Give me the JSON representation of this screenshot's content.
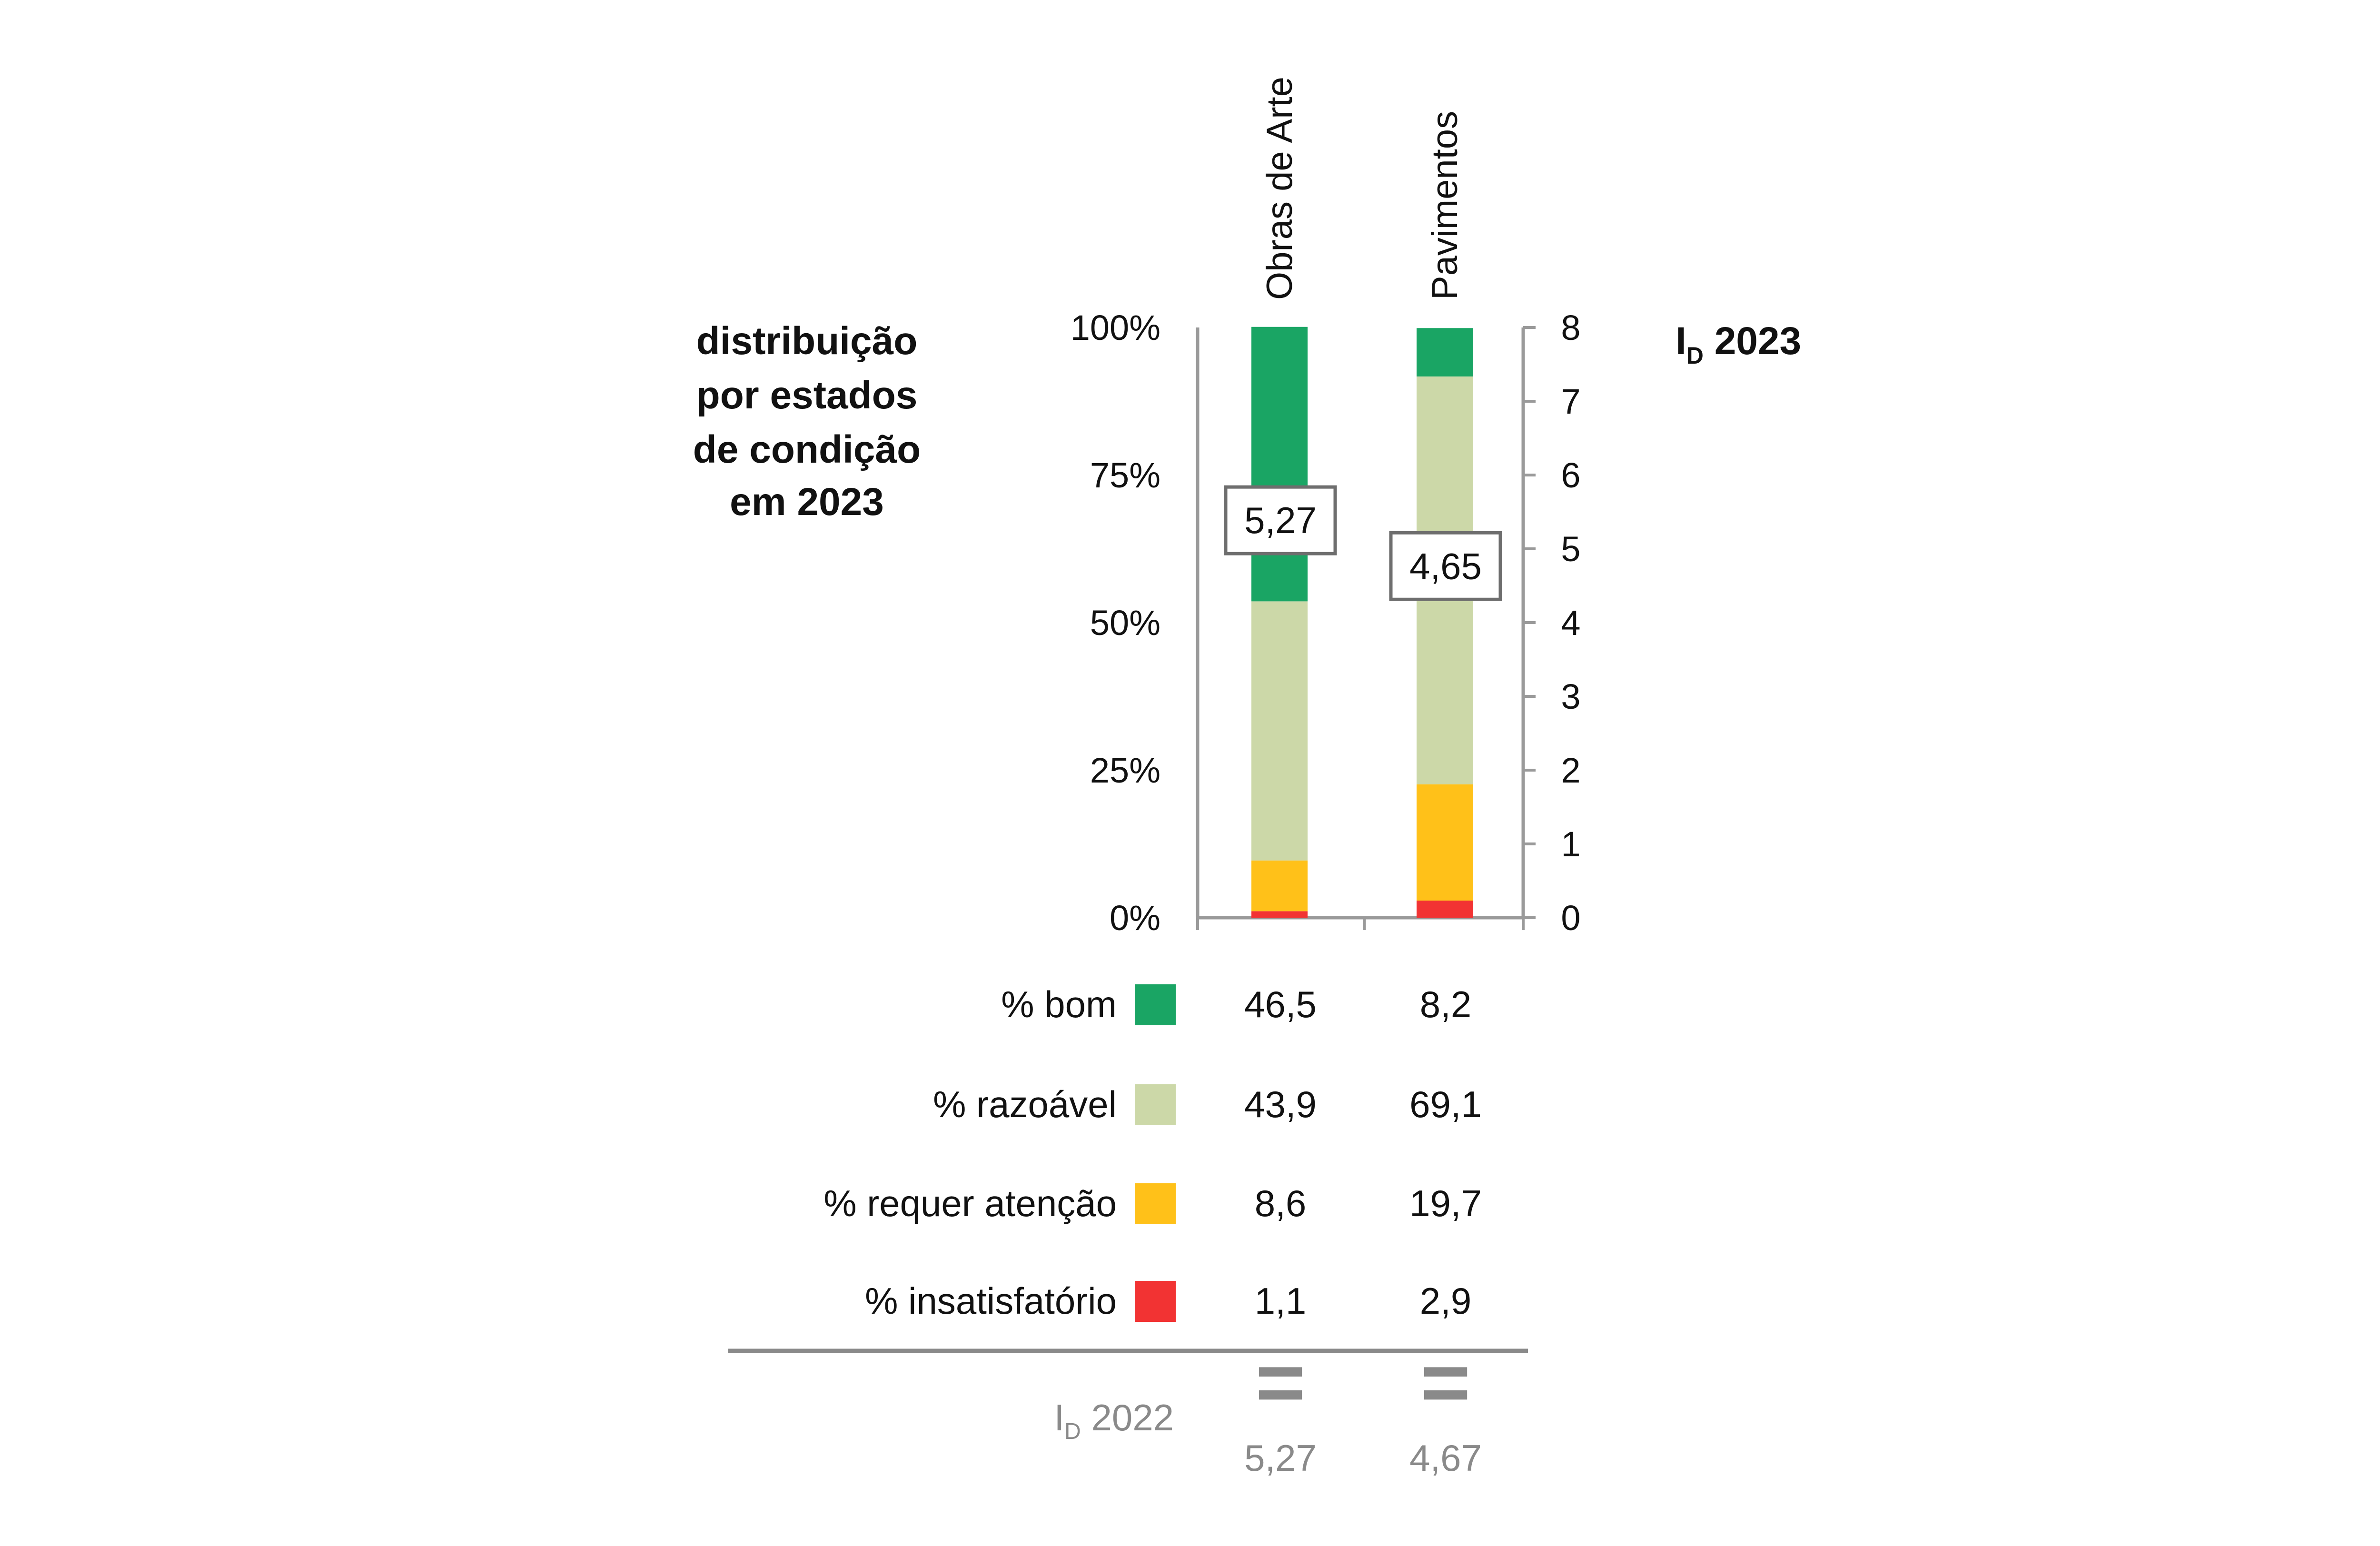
{
  "left_title": [
    "distribuição",
    "por estados",
    "de condição",
    "em 2023"
  ],
  "right_title": {
    "main": "I",
    "sub": "D",
    "rest": " 2023"
  },
  "colors": {
    "bom": "#1aa564",
    "razoavel": "#ccd8a8",
    "requer_atencao": "#ffc119",
    "insatisfatorio": "#f23333",
    "axis": "#9a9a9a",
    "text": "#111111",
    "muted": "#8a8a8a"
  },
  "chart_data": {
    "type": "bar",
    "stacked": true,
    "categories": [
      "Obras de Arte",
      "Pavimentos"
    ],
    "series": [
      {
        "name": "% insatisfatório",
        "key": "insatisfatorio",
        "values": [
          1.1,
          2.9
        ],
        "labels": [
          "1,1",
          "2,9"
        ]
      },
      {
        "name": "% requer atenção",
        "key": "requer_atencao",
        "values": [
          8.6,
          19.7
        ],
        "labels": [
          "8,6",
          "19,7"
        ]
      },
      {
        "name": "% razoável",
        "key": "razoavel",
        "values": [
          43.9,
          69.1
        ],
        "labels": [
          "43,9",
          "69,1"
        ]
      },
      {
        "name": "% bom",
        "key": "bom",
        "values": [
          46.5,
          8.2
        ],
        "labels": [
          "46,5",
          "8,2"
        ]
      }
    ],
    "left_axis": {
      "ylim": [
        0,
        100
      ],
      "ticks": [
        0,
        25,
        50,
        75,
        100
      ],
      "tick_labels": [
        "0%",
        "25%",
        "50%",
        "75%",
        "100%"
      ]
    },
    "right_axis": {
      "ylim": [
        0,
        8
      ],
      "ticks": [
        0,
        1,
        2,
        3,
        4,
        5,
        6,
        7,
        8
      ],
      "tick_labels": [
        "0",
        "1",
        "2",
        "3",
        "4",
        "5",
        "6",
        "7",
        "8"
      ]
    },
    "id_2023": {
      "values": [
        5.27,
        4.65
      ],
      "labels": [
        "5,27",
        "4,65"
      ]
    },
    "id_2022": {
      "label_main": "I",
      "label_sub": "D",
      "label_rest": " 2022",
      "symbol": "=",
      "values": [
        5.27,
        4.67
      ],
      "labels": [
        "5,27",
        "4,67"
      ]
    },
    "table_rows_order": [
      "bom",
      "razoavel",
      "requer_atencao",
      "insatisfatorio"
    ]
  }
}
